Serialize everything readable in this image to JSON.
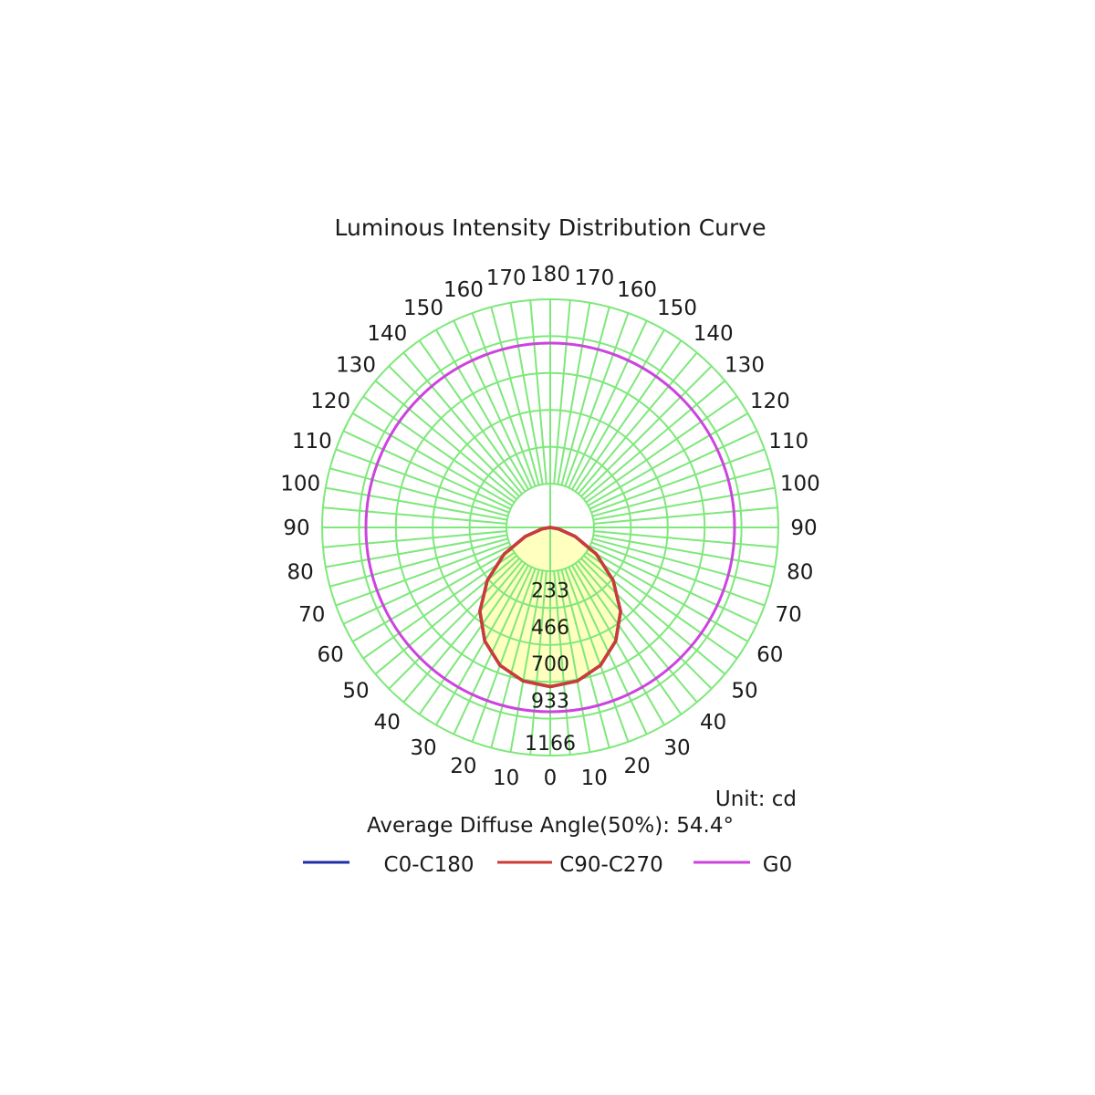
{
  "chart_data": {
    "type": "polar",
    "title": "Luminous Intensity Distribution Curve",
    "unit_label": "Unit: cd",
    "diffuse_angle_label": "Average Diffuse Angle(50%): 54.4°",
    "radial_ticks": [
      233,
      466,
      700,
      933,
      1166
    ],
    "radial_max": 1166,
    "angle_ticks": [
      0,
      10,
      20,
      30,
      40,
      50,
      60,
      70,
      80,
      90,
      100,
      110,
      120,
      130,
      140,
      150,
      160,
      170,
      180
    ],
    "colors": {
      "grid": "#7ee87a",
      "c0_c180": "#1f2fa8",
      "c90_c270": "#cc3b35",
      "g0": "#cc44dd",
      "fill": "#ffffc0"
    },
    "legend": [
      {
        "name": "C0-C180",
        "color": "#1f2fa8"
      },
      {
        "name": "C90-C270",
        "color": "#cc3b35"
      },
      {
        "name": "G0",
        "color": "#cc44dd"
      }
    ],
    "series": [
      {
        "name": "C0-C180",
        "angles": [
          0,
          10,
          20,
          30,
          40,
          50,
          60,
          70,
          80,
          90
        ],
        "values": [
          960,
          940,
          885,
          790,
          660,
          495,
          320,
          160,
          50,
          0
        ]
      },
      {
        "name": "C90-C270",
        "angles": [
          0,
          10,
          20,
          30,
          40,
          50,
          60,
          70,
          80,
          90
        ],
        "values": [
          960,
          940,
          885,
          790,
          660,
          495,
          320,
          160,
          50,
          0
        ]
      },
      {
        "name": "G0",
        "constant_value": 933,
        "angles": "all"
      }
    ]
  }
}
